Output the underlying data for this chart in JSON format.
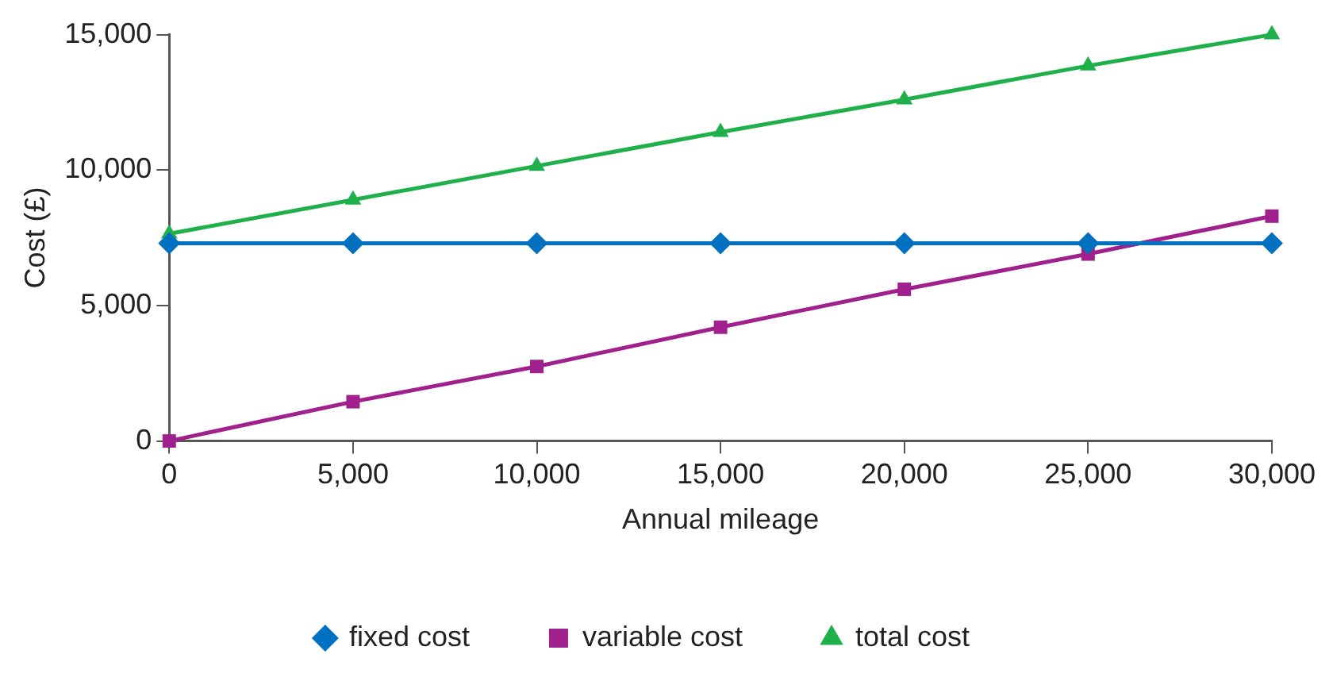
{
  "chart_data": {
    "type": "line",
    "xlabel": "Annual mileage",
    "ylabel": "Cost (£)",
    "x": [
      0,
      5000,
      10000,
      15000,
      20000,
      25000,
      30000
    ],
    "series": [
      {
        "name": "fixed cost",
        "color": "#0070c0",
        "marker": "diamond",
        "values": [
          7300,
          7300,
          7300,
          7300,
          7300,
          7300,
          7300
        ]
      },
      {
        "name": "variable cost",
        "color": "#a0218e",
        "marker": "square",
        "values": [
          0,
          1450,
          2750,
          4200,
          5600,
          6900,
          8300
        ]
      },
      {
        "name": "total cost",
        "color": "#20b04b",
        "marker": "triangle",
        "values": [
          7650,
          8900,
          10150,
          11400,
          12600,
          13850,
          15000
        ]
      }
    ],
    "xlim": [
      0,
      30000
    ],
    "xticks": [
      0,
      {
        "value": 5000,
        "label": "5,000"
      },
      {
        "value": 10000,
        "label": "10,000"
      },
      {
        "value": 15000,
        "label": "15,000"
      },
      {
        "value": 20000,
        "label": "20,000"
      },
      {
        "value": 25000,
        "label": "25,000"
      },
      {
        "value": 30000,
        "label": "30,000"
      }
    ],
    "ylim": [
      0,
      15000
    ],
    "yticks": [
      0,
      {
        "value": 5000,
        "label": "5,000"
      },
      {
        "value": 10000,
        "label": "10,000"
      },
      {
        "value": 15000,
        "label": "15,000"
      }
    ],
    "grid": false,
    "legend": "bottom",
    "line_style": "solid"
  }
}
